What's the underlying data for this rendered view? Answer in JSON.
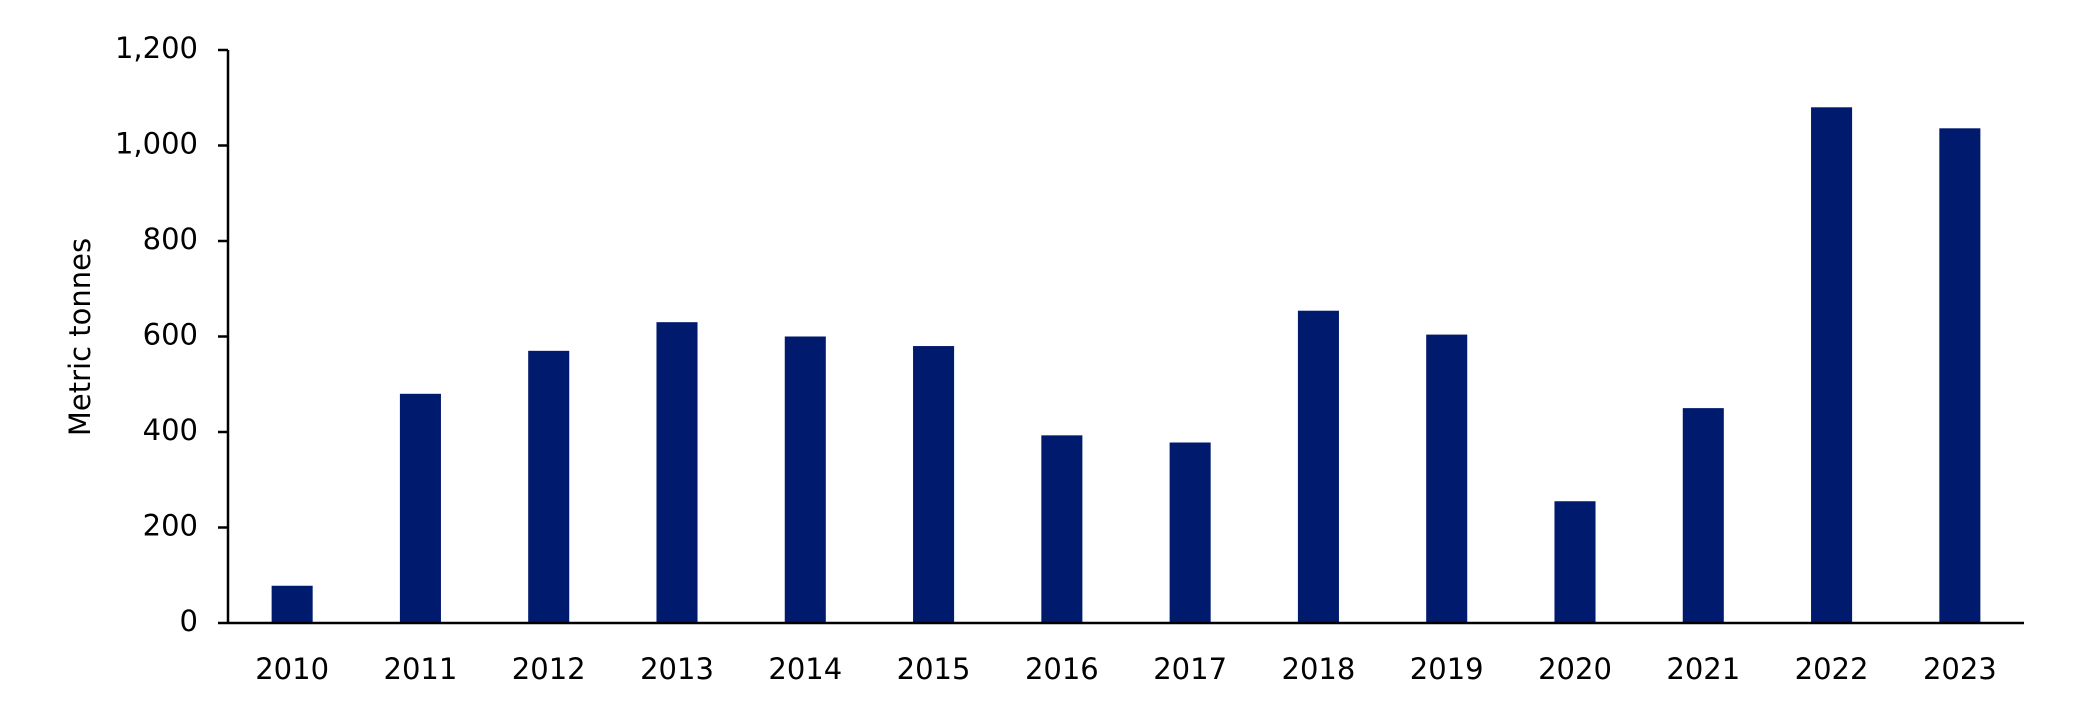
{
  "chart_data": {
    "type": "bar",
    "y_label": "Metric tonnes",
    "categories": [
      "2010",
      "2011",
      "2012",
      "2013",
      "2014",
      "2015",
      "2016",
      "2017",
      "2018",
      "2019",
      "2020",
      "2021",
      "2022",
      "2023"
    ],
    "values": [
      78,
      480,
      570,
      630,
      600,
      580,
      393,
      378,
      654,
      604,
      255,
      450,
      1080,
      1036
    ],
    "color": "#001a6e",
    "ylim": [
      0,
      1200
    ],
    "yticks": [
      0,
      200,
      400,
      600,
      800,
      {
        "value": 1000,
        "label": "1,000"
      },
      {
        "value": 1200,
        "label": "1,200"
      }
    ],
    "grid": false
  }
}
